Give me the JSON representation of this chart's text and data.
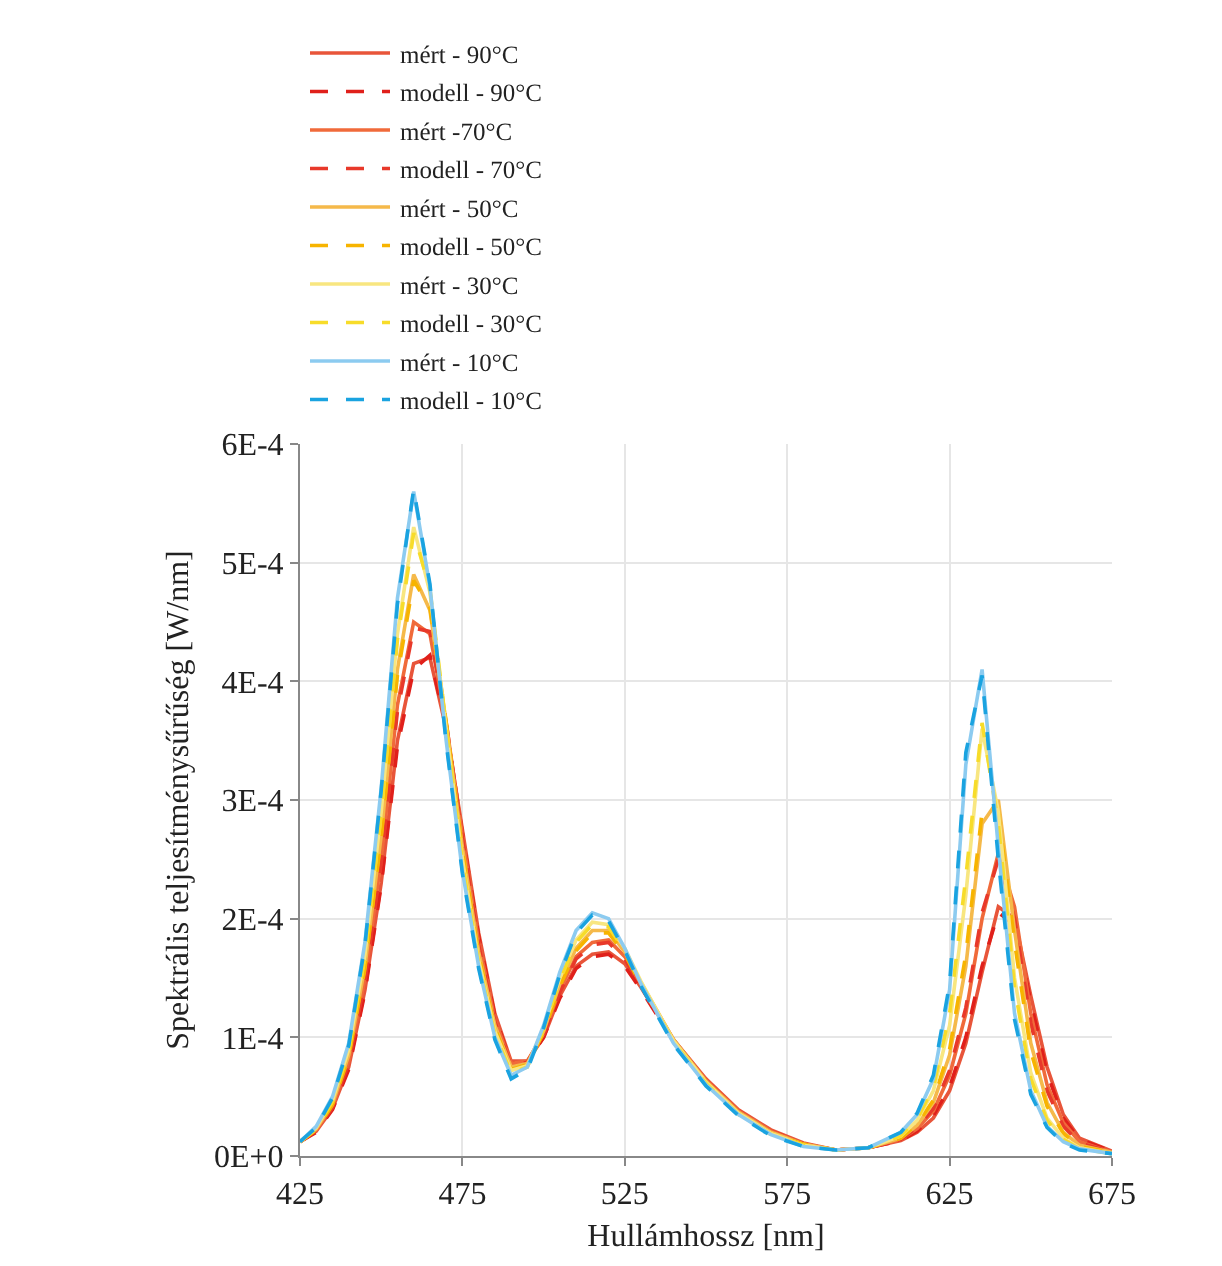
{
  "chart_data": {
    "type": "line",
    "xlabel": "Hullámhossz [nm]",
    "ylabel": "Spektrális teljesítménysűrűség [W/nm]",
    "x": [
      425,
      430,
      435,
      440,
      445,
      450,
      455,
      460,
      465,
      470,
      475,
      480,
      485,
      490,
      495,
      500,
      505,
      510,
      515,
      520,
      525,
      530,
      540,
      550,
      560,
      570,
      580,
      590,
      600,
      610,
      615,
      620,
      625,
      630,
      635,
      640,
      645,
      650,
      655,
      660,
      665,
      675
    ],
    "xlim": [
      425,
      675
    ],
    "xticks": [
      425,
      475,
      525,
      575,
      625,
      675
    ],
    "ylim": [
      0,
      0.0006
    ],
    "yticks": [
      {
        "value": 0,
        "label": "0E+0"
      },
      {
        "value": 0.0001,
        "label": "1E-4"
      },
      {
        "value": 0.0002,
        "label": "2E-4"
      },
      {
        "value": 0.0003,
        "label": "3E-4"
      },
      {
        "value": 0.0004,
        "label": "4E-4"
      },
      {
        "value": 0.0005,
        "label": "5E-4"
      },
      {
        "value": 0.0006,
        "label": "6E-4"
      }
    ],
    "grid": true,
    "legend": "top",
    "marker": "none",
    "series": [
      {
        "name": "mért - 90°C",
        "color": "#e8553a",
        "line_style": "solid",
        "values": [
          1.2e-05,
          2.1e-05,
          4e-05,
          7.5e-05,
          0.00014,
          0.00023,
          0.00035,
          0.000415,
          0.00042,
          0.00036,
          0.000275,
          0.000188,
          0.00012,
          8e-05,
          8e-05,
          0.0001,
          0.000135,
          0.00016,
          0.00017,
          0.000172,
          0.000162,
          0.000142,
          9.8e-05,
          6.5e-05,
          3.9e-05,
          2.2e-05,
          1.1e-05,
          5e-06,
          7e-06,
          1.3e-05,
          2e-05,
          3.2e-05,
          5.5e-05,
          9.5e-05,
          0.000155,
          0.00021,
          0.0002,
          0.000135,
          7.5e-05,
          3.5e-05,
          1.5e-05,
          4e-06
        ]
      },
      {
        "name": "modell - 90°C",
        "color": "#e0201b",
        "line_style": "dashed",
        "values": [
          1.2e-05,
          2e-05,
          3.9e-05,
          7.3e-05,
          0.000138,
          0.000228,
          0.000345,
          0.00041,
          0.000422,
          0.000362,
          0.000272,
          0.000185,
          0.000118,
          7.8e-05,
          7.9e-05,
          0.0001,
          0.000133,
          0.000158,
          0.000168,
          0.00017,
          0.00016,
          0.00014,
          9.7e-05,
          6.4e-05,
          3.8e-05,
          2.1e-05,
          1e-05,
          5e-06,
          7e-06,
          1.3e-05,
          2.1e-05,
          3.4e-05,
          5.8e-05,
          0.0001,
          0.00016,
          0.000205,
          0.000195,
          0.00013,
          7e-05,
          3.2e-05,
          1.4e-05,
          4e-06
        ]
      },
      {
        "name": "mért -70°C",
        "color": "#f06a3a",
        "line_style": "solid",
        "values": [
          1.2e-05,
          2.2e-05,
          4.2e-05,
          8e-05,
          0.00015,
          0.00025,
          0.00038,
          0.00045,
          0.00044,
          0.000365,
          0.00027,
          0.00018,
          0.000115,
          7.8e-05,
          8e-05,
          0.000103,
          0.00014,
          0.000168,
          0.00018,
          0.000182,
          0.000168,
          0.000145,
          9.8e-05,
          6.4e-05,
          3.8e-05,
          2.1e-05,
          1e-05,
          5e-06,
          7e-06,
          1.4e-05,
          2.3e-05,
          3.8e-05,
          6.8e-05,
          0.00012,
          0.0002,
          0.000255,
          0.00021,
          0.00012,
          6e-05,
          2.8e-05,
          1.2e-05,
          3e-06
        ]
      },
      {
        "name": "modell - 70°C",
        "color": "#e8392a",
        "line_style": "dashed",
        "values": [
          1.2e-05,
          2.1e-05,
          4.1e-05,
          7.8e-05,
          0.000148,
          0.000247,
          0.000375,
          0.000445,
          0.000442,
          0.000366,
          0.000268,
          0.000178,
          0.000113,
          7.6e-05,
          7.9e-05,
          0.000102,
          0.000138,
          0.000166,
          0.000178,
          0.00018,
          0.000166,
          0.000143,
          9.7e-05,
          6.3e-05,
          3.7e-05,
          2e-05,
          1e-05,
          5e-06,
          7e-06,
          1.4e-05,
          2.4e-05,
          4e-05,
          7.2e-05,
          0.000125,
          0.000205,
          0.00025,
          0.0002,
          0.000112,
          5.5e-05,
          2.5e-05,
          1.1e-05,
          3e-06
        ]
      },
      {
        "name": "mért - 50°C",
        "color": "#f5b94a",
        "line_style": "solid",
        "values": [
          1.2e-05,
          2.3e-05,
          4.4e-05,
          8.5e-05,
          0.00016,
          0.00027,
          0.00041,
          0.00049,
          0.00046,
          0.000365,
          0.00026,
          0.000172,
          0.00011,
          7.5e-05,
          7.8e-05,
          0.000105,
          0.000145,
          0.000175,
          0.00019,
          0.00019,
          0.000172,
          0.000146,
          9.8e-05,
          6.3e-05,
          3.7e-05,
          2e-05,
          1e-05,
          5e-06,
          7e-06,
          1.5e-05,
          2.6e-05,
          4.5e-05,
          8.5e-05,
          0.00016,
          0.00028,
          0.0003,
          0.00019,
          9.5e-05,
          4.5e-05,
          2e-05,
          9e-06,
          3e-06
        ]
      },
      {
        "name": "modell - 50°C",
        "color": "#f7b400",
        "line_style": "dashed",
        "values": [
          1.2e-05,
          2.2e-05,
          4.3e-05,
          8.3e-05,
          0.000158,
          0.000268,
          0.000405,
          0.000485,
          0.000462,
          0.000366,
          0.000258,
          0.00017,
          0.000108,
          7.3e-05,
          7.7e-05,
          0.000104,
          0.000143,
          0.000173,
          0.000188,
          0.000188,
          0.00017,
          0.000144,
          9.7e-05,
          6.2e-05,
          3.6e-05,
          1.9e-05,
          1e-05,
          5e-06,
          7e-06,
          1.5e-05,
          2.7e-05,
          4.7e-05,
          9e-05,
          0.00017,
          0.00029,
          0.00029,
          0.00018,
          8.8e-05,
          4.2e-05,
          1.9e-05,
          8e-06,
          3e-06
        ]
      },
      {
        "name": "mért - 30°C",
        "color": "#f8e680",
        "line_style": "solid",
        "values": [
          1.2e-05,
          2.4e-05,
          4.7e-05,
          9e-05,
          0.00017,
          0.00029,
          0.00044,
          0.00053,
          0.000475,
          0.00036,
          0.00025,
          0.000165,
          0.000105,
          7.2e-05,
          7.6e-05,
          0.000108,
          0.00015,
          0.000182,
          0.000197,
          0.000195,
          0.000175,
          0.000147,
          9.7e-05,
          6.2e-05,
          3.6e-05,
          1.9e-05,
          9e-06,
          5e-06,
          7e-06,
          1.7e-05,
          3e-05,
          5.5e-05,
          0.00011,
          0.00022,
          0.00036,
          0.00029,
          0.00015,
          7e-05,
          3.2e-05,
          1.5e-05,
          7e-06,
          2e-06
        ]
      },
      {
        "name": "modell - 30°C",
        "color": "#f7dc2a",
        "line_style": "dashed",
        "values": [
          1.2e-05,
          2.3e-05,
          4.6e-05,
          8.8e-05,
          0.000168,
          0.000288,
          0.000435,
          0.000525,
          0.000478,
          0.000362,
          0.000248,
          0.000163,
          0.000103,
          7e-05,
          7.5e-05,
          0.000107,
          0.000148,
          0.00018,
          0.000195,
          0.000193,
          0.000173,
          0.000145,
          9.6e-05,
          6.1e-05,
          3.5e-05,
          1.8e-05,
          9e-06,
          5e-06,
          7e-06,
          1.7e-05,
          3.1e-05,
          5.8e-05,
          0.00012,
          0.000235,
          0.000365,
          0.00028,
          0.000142,
          6.5e-05,
          3e-05,
          1.4e-05,
          6e-06,
          2e-06
        ]
      },
      {
        "name": "mért - 10°C",
        "color": "#8ccbf0",
        "line_style": "solid",
        "values": [
          1.2e-05,
          2.5e-05,
          5e-05,
          9.5e-05,
          0.00018,
          0.00031,
          0.00047,
          0.00056,
          0.00048,
          0.00035,
          0.00024,
          0.00016,
          0.0001,
          6.8e-05,
          7.5e-05,
          0.00011,
          0.000155,
          0.00019,
          0.000205,
          0.0002,
          0.000175,
          0.000145,
          9.5e-05,
          6e-05,
          3.5e-05,
          1.8e-05,
          8e-06,
          5e-06,
          7e-06,
          2e-05,
          3.5e-05,
          6.5e-05,
          0.00014,
          0.00033,
          0.00041,
          0.00026,
          0.00012,
          5.5e-05,
          2.5e-05,
          1.2e-05,
          6e-06,
          2e-06
        ]
      },
      {
        "name": "modell - 10°C",
        "color": "#1aa3e0",
        "line_style": "dashed",
        "values": [
          1.2e-05,
          2.4e-05,
          4.9e-05,
          9.3e-05,
          0.000178,
          0.000308,
          0.000465,
          0.000562,
          0.000482,
          0.000348,
          0.000238,
          0.000158,
          9.8e-05,
          6.5e-05,
          7.3e-05,
          0.000108,
          0.000153,
          0.000188,
          0.000203,
          0.000198,
          0.000173,
          0.000143,
          9.4e-05,
          5.9e-05,
          3.4e-05,
          1.7e-05,
          8e-06,
          5e-06,
          7e-06,
          2e-05,
          3.6e-05,
          6.8e-05,
          0.000145,
          0.00034,
          0.000405,
          0.00025,
          0.000115,
          5.2e-05,
          2.4e-05,
          1.1e-05,
          5e-06,
          2e-06
        ]
      }
    ]
  }
}
